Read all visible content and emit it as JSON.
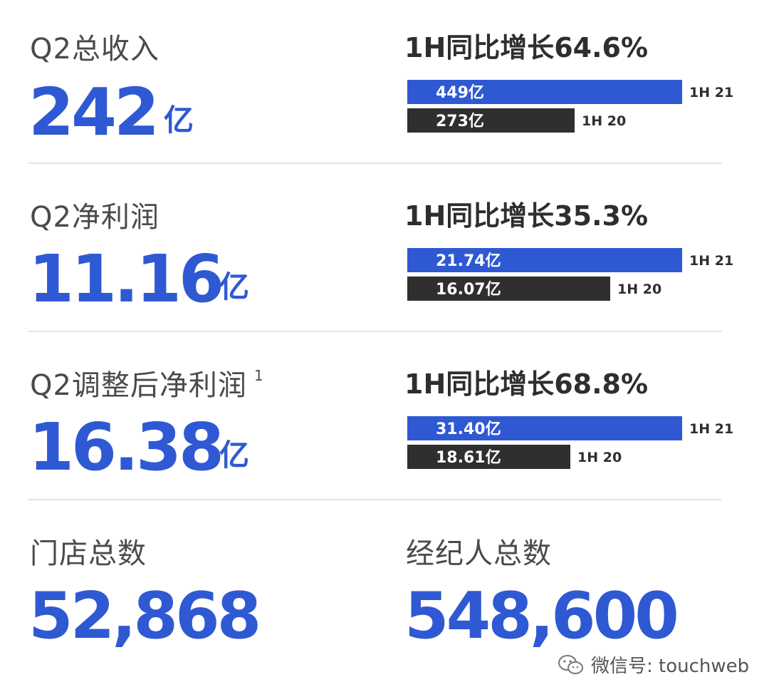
{
  "colors": {
    "accent_blue": "#2f59d3",
    "bar_blue": "#2f59d3",
    "bar_dark": "#2f2f2f",
    "label_gray": "#4a4a4a"
  },
  "sections": [
    {
      "label": "Q2总收入",
      "value": "242",
      "unit": "亿",
      "growth": "1H同比增长64.6%"
    },
    {
      "label": "Q2净利润",
      "value": "11.16",
      "unit": "亿",
      "growth": "1H同比增长35.3%"
    },
    {
      "label": "Q2调整后净利润",
      "footnote": "1",
      "value": "16.38",
      "unit": "亿",
      "growth": "1H同比增长68.8%"
    }
  ],
  "stats": [
    {
      "label": "门店总数",
      "value": "52,868"
    },
    {
      "label": "经纪人总数",
      "value": "548,600"
    }
  ],
  "watermark": {
    "icon": "wechat-icon",
    "text": "微信号: touchweb"
  },
  "chart_data": [
    {
      "type": "bar",
      "orientation": "horizontal",
      "categories": [
        "1H 21",
        "1H 20"
      ],
      "values": [
        449,
        273
      ],
      "value_labels": [
        "449亿",
        "273亿"
      ],
      "title": "1H同比增长64.6%"
    },
    {
      "type": "bar",
      "orientation": "horizontal",
      "categories": [
        "1H 21",
        "1H 20"
      ],
      "values": [
        21.74,
        16.07
      ],
      "value_labels": [
        "21.74亿",
        "16.07亿"
      ],
      "title": "1H同比增长35.3%"
    },
    {
      "type": "bar",
      "orientation": "horizontal",
      "categories": [
        "1H 21",
        "1H 20"
      ],
      "values": [
        31.4,
        18.61
      ],
      "value_labels": [
        "31.40亿",
        "18.61亿"
      ],
      "title": "1H同比增长68.8%"
    }
  ]
}
